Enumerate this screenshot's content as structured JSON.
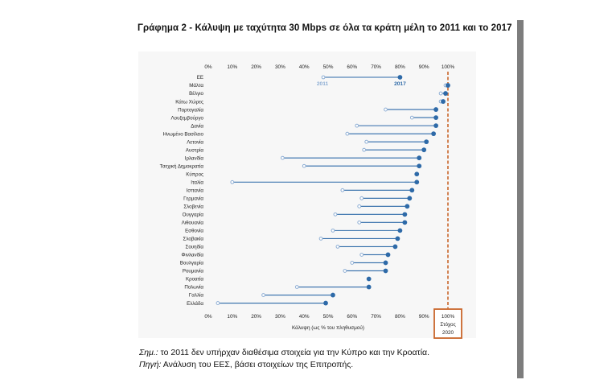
{
  "figure_title": "Γράφημα 2 - Κάλυψη με ταχύτητα 30 Mbps σε όλα τα κράτη μέλη το 2011 και το 2017",
  "footnote_note_label": "Σημ.:",
  "footnote_note_text": " το 2011 δεν υπήρχαν διαθέσιμα στοιχεία για την Κύπρο και την Κροατία.",
  "footnote_source_label": "Πηγή:",
  "footnote_source_text": " Ανάλυση του ΕΕΣ, βάσει στοιχείων της Επιτροπής.",
  "colors": {
    "dark_blue": "#2e6aa8",
    "light_blue": "#8eaed4",
    "target_orange": "#c9652a",
    "panel": "#f7f7f7"
  },
  "chart_data": {
    "type": "dumbbell",
    "xlabel": "Κάλυψη (ως % του πληθυσμού)",
    "xlim": [
      0,
      100
    ],
    "x_ticks": [
      "0%",
      "10%",
      "20%",
      "30%",
      "40%",
      "50%",
      "60%",
      "70%",
      "80%",
      "90%",
      "100%"
    ],
    "grid": false,
    "annotations": {
      "label_2011": "2011",
      "label_2017": "2017"
    },
    "target": {
      "value": 100,
      "label_pct": "100%",
      "label_line1": "Στόχος",
      "label_line2": "2020"
    },
    "categories": [
      "ΕΕ",
      "Μάλτα",
      "Βέλγιο",
      "Κάτω Χώρες",
      "Πορτογαλία",
      "Λουξεμβούργο",
      "Δανία",
      "Ηνωμένο Βασίλειο",
      "Λετονία",
      "Αυστρία",
      "Ιρλανδία",
      "Τσεχική Δημοκρατία",
      "Κύπρος",
      "Ιταλία",
      "Ισπανία",
      "Γερμανία",
      "Σλοβενία",
      "Ουγγαρία",
      "Λιθουανία",
      "Εσθονία",
      "Σλοβακία",
      "Σουηδία",
      "Φινλανδία",
      "Βουλγαρία",
      "Ρουμανία",
      "Κροατία",
      "Πολωνία",
      "Γαλλία",
      "Ελλάδα"
    ],
    "series": [
      {
        "name": "2011",
        "values": [
          48,
          99,
          97,
          97,
          74,
          85,
          62,
          58,
          66,
          65,
          31,
          40,
          null,
          10,
          56,
          64,
          63,
          53,
          63,
          52,
          47,
          54,
          64,
          60,
          57,
          null,
          37,
          23,
          4
        ]
      },
      {
        "name": "2017",
        "values": [
          80,
          100,
          99,
          98,
          95,
          95,
          95,
          94,
          91,
          90,
          88,
          88,
          87,
          87,
          85,
          84,
          83,
          82,
          82,
          80,
          79,
          78,
          75,
          74,
          74,
          67,
          67,
          52,
          49
        ]
      }
    ]
  }
}
